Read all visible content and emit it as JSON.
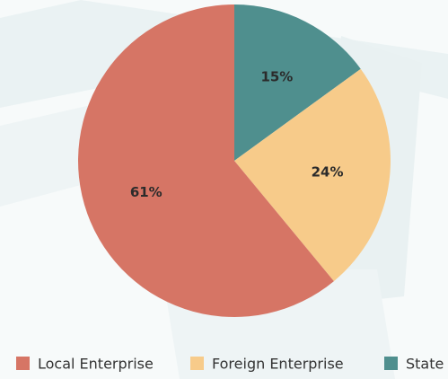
{
  "chart_data": {
    "type": "pie",
    "categories": [
      "Local Enterprise",
      "Foreign Enterprise",
      "State"
    ],
    "values": [
      61,
      24,
      15
    ],
    "value_labels": [
      "61%",
      "24%",
      "15%"
    ],
    "colors": [
      "#d67565",
      "#f7cb8a",
      "#4f8f8e"
    ],
    "start": "top",
    "direction": "counterclockwise-from-last",
    "legend": "bottom"
  }
}
